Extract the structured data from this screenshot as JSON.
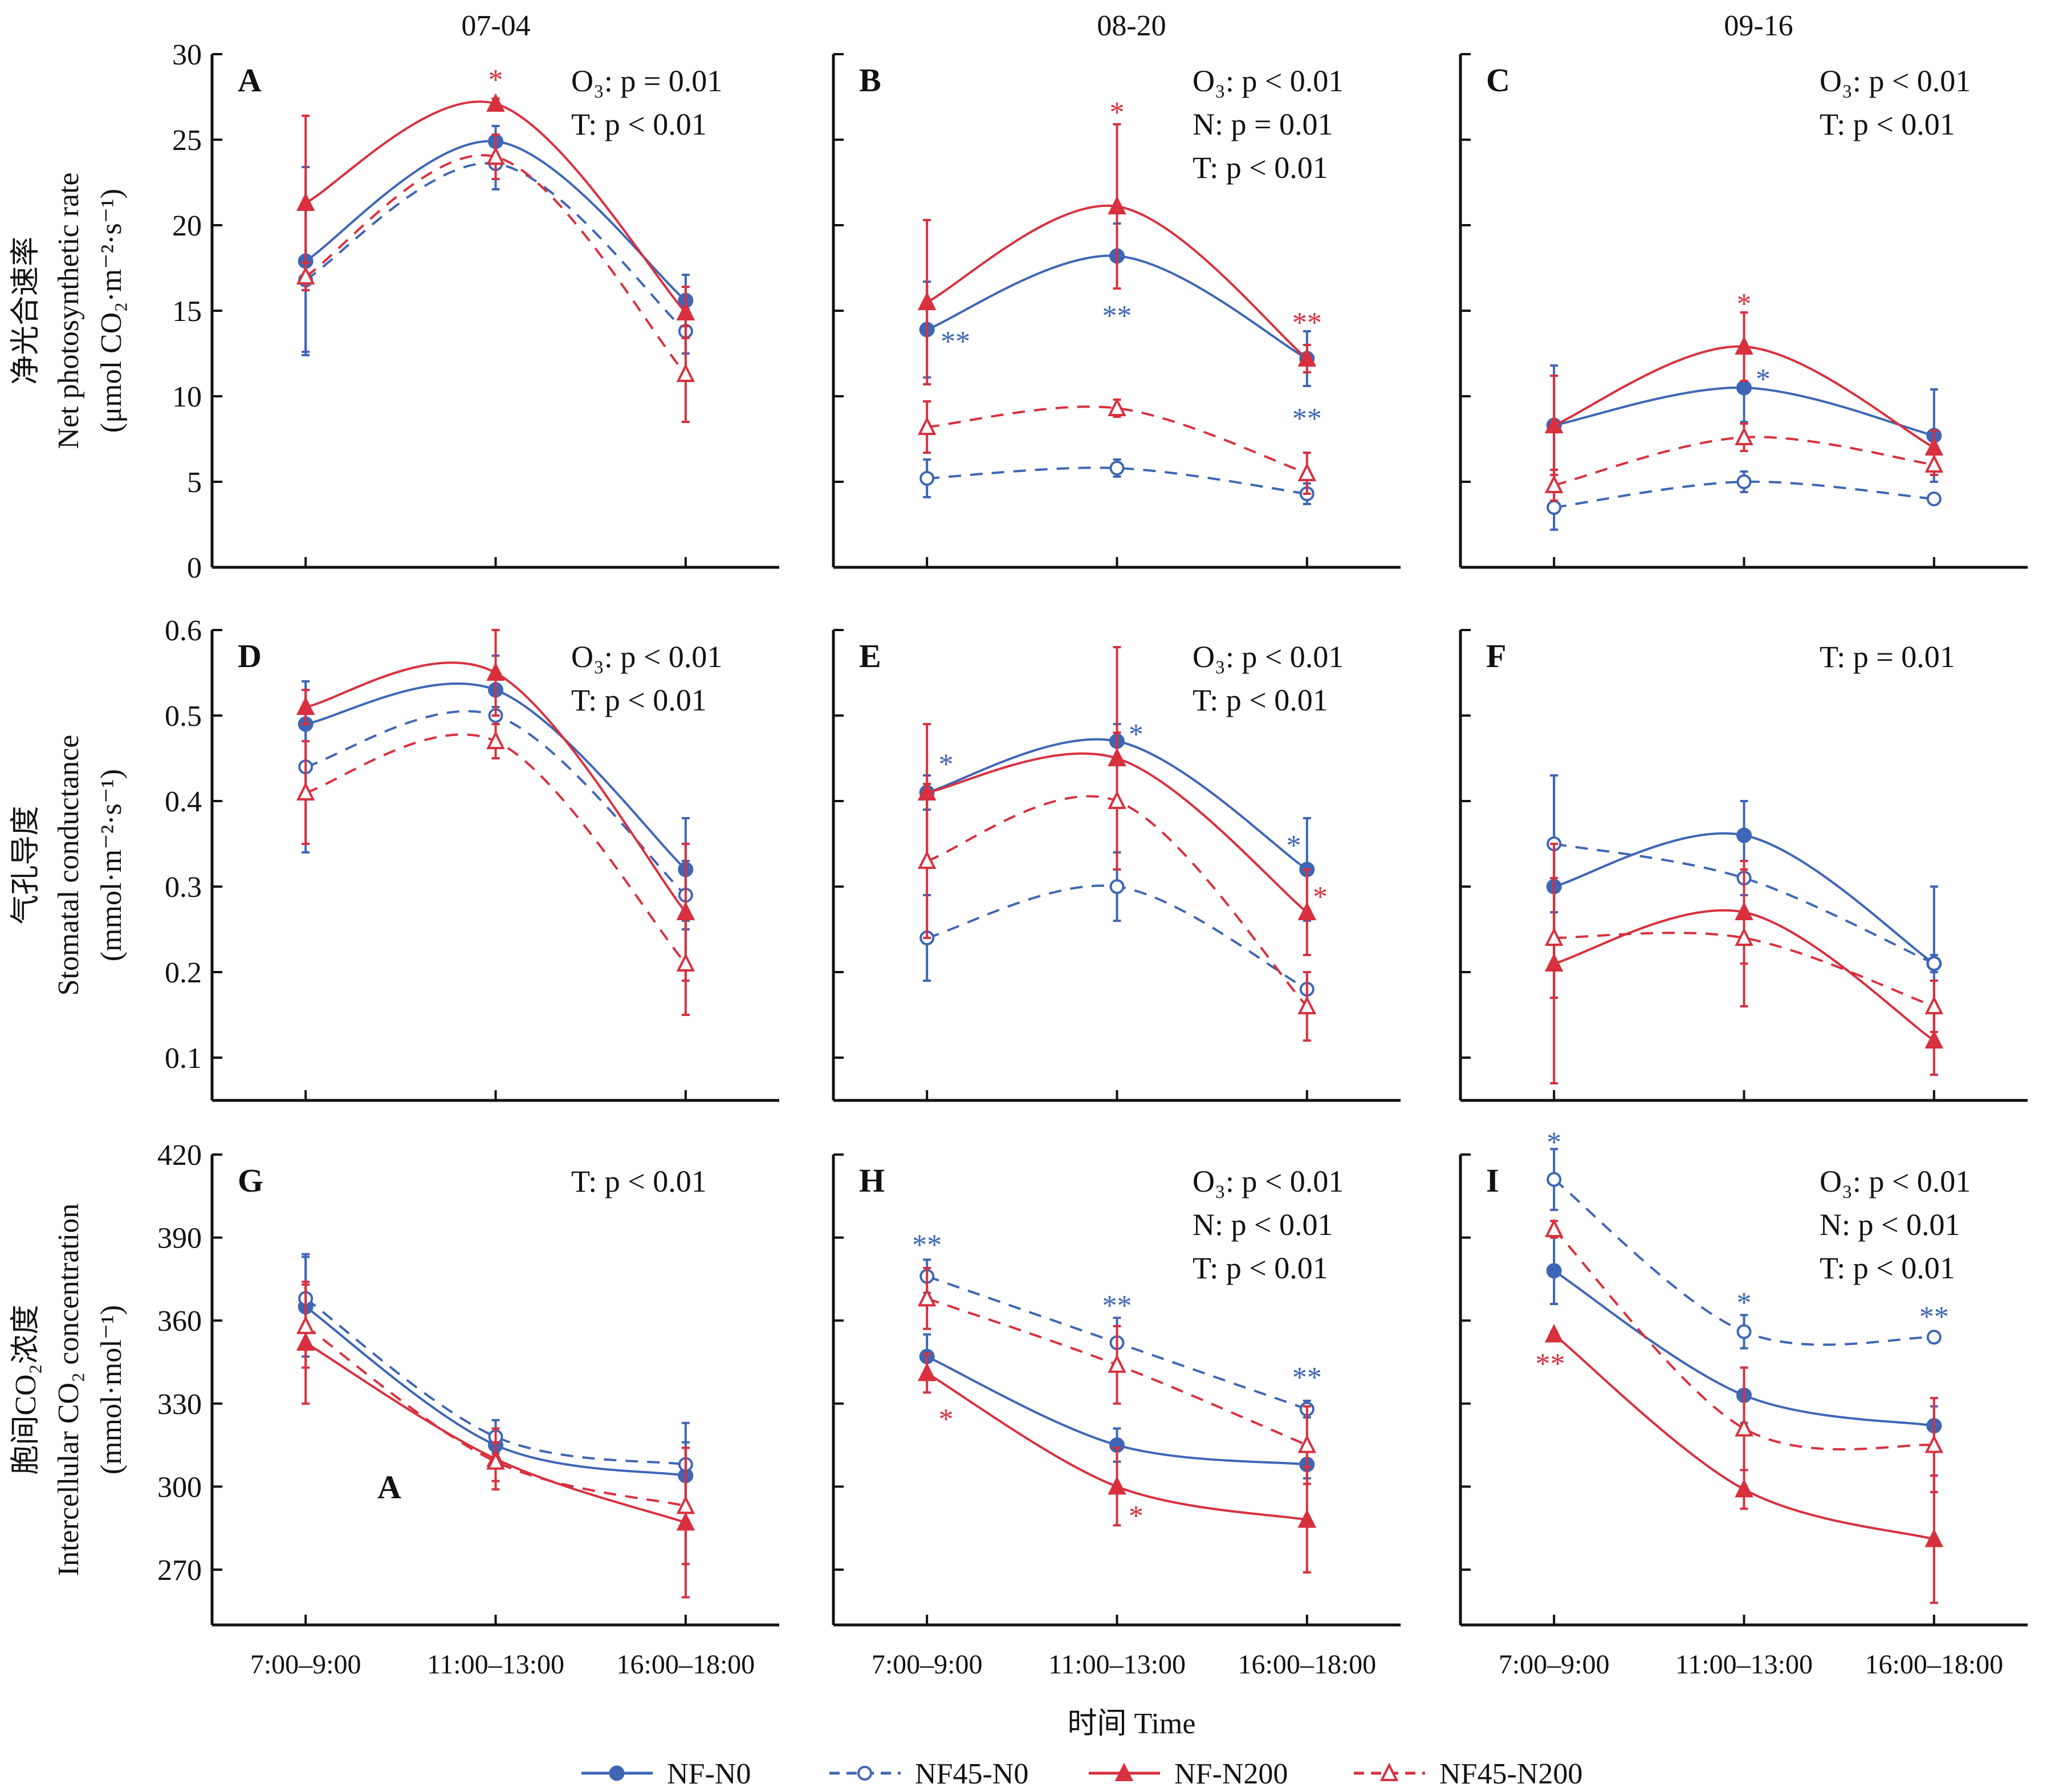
{
  "colors": {
    "blue": "#3e66b5",
    "red": "#d8303e",
    "axis": "#111111"
  },
  "legend": [
    {
      "name": "NF-N0",
      "color": "blue",
      "dashed": false,
      "marker": "filled-circle"
    },
    {
      "name": "NF45-N0",
      "color": "blue",
      "dashed": true,
      "marker": "open-circle"
    },
    {
      "name": "NF-N200",
      "color": "red",
      "dashed": false,
      "marker": "filled-triangle"
    },
    {
      "name": "NF45-N200",
      "color": "red",
      "dashed": true,
      "marker": "open-triangle"
    }
  ],
  "column_titles": [
    "07-04",
    "08-20",
    "09-16"
  ],
  "x_title": "时间 Time",
  "row_ylabels": [
    {
      "cn": "净光合速率",
      "en": "Net photosynthetic rate",
      "unit": "(μmol CO₂·m⁻²·s⁻¹)"
    },
    {
      "cn": "气孔导度",
      "en": "Stomatal conductance",
      "unit": "(mmol·m⁻²·s⁻¹)"
    },
    {
      "cn": "胞间CO₂浓度",
      "en": "Intercellular CO₂ concentration",
      "unit": "(mmol·mol⁻¹)"
    }
  ],
  "chart_data": [
    {
      "panel": "A",
      "type": "line",
      "row": 0,
      "col": 0,
      "title": "07-04",
      "categories": [
        "7:00–9:00",
        "11:00–13:00",
        "16:00–18:00"
      ],
      "ylim": [
        0,
        30
      ],
      "yticks": [
        0,
        5,
        10,
        15,
        20,
        25,
        30
      ],
      "ylabel": "净光合速率 Net photosynthetic rate (μmol CO₂·m⁻²·s⁻¹)",
      "stats": [
        "O₃: p = 0.01",
        "T: p < 0.01"
      ],
      "series": [
        {
          "name": "NF-N0",
          "values": [
            17.9,
            24.9,
            15.6
          ],
          "err": [
            5.5,
            0.9,
            1.5
          ]
        },
        {
          "name": "NF45-N0",
          "values": [
            16.8,
            23.6,
            13.8
          ],
          "err": [
            4.2,
            1.5,
            1.3
          ]
        },
        {
          "name": "NF-N200",
          "values": [
            21.3,
            27.1,
            14.9
          ],
          "err": [
            5.1,
            0.3,
            1.5
          ]
        },
        {
          "name": "NF45-N200",
          "values": [
            17.0,
            24.0,
            11.3
          ],
          "err": [
            0.8,
            1.3,
            2.8
          ]
        }
      ],
      "annotations": [
        {
          "text": "*",
          "color": "red",
          "x": 1,
          "y": 28.6
        }
      ]
    },
    {
      "panel": "B",
      "type": "line",
      "row": 0,
      "col": 1,
      "title": "08-20",
      "categories": [
        "7:00–9:00",
        "11:00–13:00",
        "16:00–18:00"
      ],
      "ylim": [
        0,
        30
      ],
      "yticks": [
        0,
        5,
        10,
        15,
        20,
        25,
        30
      ],
      "stats": [
        "O₃: p < 0.01",
        "N: p = 0.01",
        "T: p < 0.01"
      ],
      "series": [
        {
          "name": "NF-N0",
          "values": [
            13.9,
            18.2,
            12.2
          ],
          "err": [
            2.8,
            1.9,
            1.6
          ]
        },
        {
          "name": "NF45-N0",
          "values": [
            5.2,
            5.8,
            4.3
          ],
          "err": [
            1.1,
            0.5,
            0.6
          ]
        },
        {
          "name": "NF-N200",
          "values": [
            15.5,
            21.1,
            12.2
          ],
          "err": [
            4.8,
            4.8,
            0.8
          ]
        },
        {
          "name": "NF45-N200",
          "values": [
            8.2,
            9.3,
            5.5
          ],
          "err": [
            1.5,
            0.5,
            1.2
          ]
        }
      ],
      "annotations": [
        {
          "text": "**",
          "color": "blue",
          "x": 0.15,
          "y": 13.3
        },
        {
          "text": "*",
          "color": "red",
          "x": 1,
          "y": 26.7
        },
        {
          "text": "**",
          "color": "blue",
          "x": 1,
          "y": 14.8
        },
        {
          "text": "**",
          "color": "red",
          "x": 1,
          "y": 14.4,
          "x_idx": 2
        },
        {
          "text": "**",
          "color": "blue",
          "x": 2,
          "y": 8.8
        }
      ]
    },
    {
      "panel": "C",
      "type": "line",
      "row": 0,
      "col": 2,
      "title": "09-16",
      "categories": [
        "7:00–9:00",
        "11:00–13:00",
        "16:00–18:00"
      ],
      "ylim": [
        0,
        30
      ],
      "yticks": [
        0,
        5,
        10,
        15,
        20,
        25,
        30
      ],
      "stats": [
        "O₃: p < 0.01",
        "T: p < 0.01"
      ],
      "series": [
        {
          "name": "NF-N0",
          "values": [
            8.3,
            10.5,
            7.7
          ],
          "err": [
            3.5,
            2.0,
            2.7
          ]
        },
        {
          "name": "NF45-N0",
          "values": [
            3.5,
            5.0,
            4.0
          ],
          "err": [
            1.3,
            0.6,
            0.3
          ]
        },
        {
          "name": "NF-N200",
          "values": [
            8.3,
            12.9,
            7.0
          ],
          "err": [
            2.9,
            2.0,
            1.0
          ]
        },
        {
          "name": "NF45-N200",
          "values": [
            4.8,
            7.6,
            6.0
          ],
          "err": [
            0.9,
            0.8,
            0.6
          ]
        }
      ],
      "annotations": [
        {
          "text": "*",
          "color": "red",
          "x": 1,
          "y": 15.5
        },
        {
          "text": "*",
          "color": "blue",
          "x": 1.1,
          "y": 11.1
        }
      ]
    },
    {
      "panel": "D",
      "type": "line",
      "row": 1,
      "col": 0,
      "categories": [
        "7:00–9:00",
        "11:00–13:00",
        "16:00–18:00"
      ],
      "ylim": [
        0.05,
        0.6
      ],
      "yticks": [
        0.1,
        0.2,
        0.3,
        0.4,
        0.5,
        0.6
      ],
      "ylabel": "气孔导度 Stomatal conductance (mmol·m⁻²·s⁻¹)",
      "stats": [
        "O₃: p < 0.01",
        "T: p < 0.01"
      ],
      "series": [
        {
          "name": "NF-N0",
          "values": [
            0.49,
            0.53,
            0.32
          ],
          "err": [
            0.05,
            0.04,
            0.06
          ]
        },
        {
          "name": "NF45-N0",
          "values": [
            0.44,
            0.5,
            0.29
          ],
          "err": [
            0.1,
            0.01,
            0.04
          ]
        },
        {
          "name": "NF-N200",
          "values": [
            0.51,
            0.55,
            0.27
          ],
          "err": [
            0.02,
            0.05,
            0.08
          ]
        },
        {
          "name": "NF45-N200",
          "values": [
            0.41,
            0.47,
            0.21
          ],
          "err": [
            0.06,
            0.02,
            0.06
          ]
        }
      ],
      "annotations": []
    },
    {
      "panel": "E",
      "type": "line",
      "row": 1,
      "col": 1,
      "categories": [
        "7:00–9:00",
        "11:00–13:00",
        "16:00–18:00"
      ],
      "ylim": [
        0.05,
        0.6
      ],
      "yticks": [
        0.1,
        0.2,
        0.3,
        0.4,
        0.5,
        0.6
      ],
      "stats": [
        "O₃: p < 0.01",
        "T: p < 0.01"
      ],
      "series": [
        {
          "name": "NF-N0",
          "values": [
            0.41,
            0.47,
            0.32
          ],
          "err": [
            0.02,
            0.02,
            0.06
          ]
        },
        {
          "name": "NF45-N0",
          "values": [
            0.24,
            0.3,
            0.18
          ],
          "err": [
            0.05,
            0.04,
            0.02
          ]
        },
        {
          "name": "NF-N200",
          "values": [
            0.41,
            0.45,
            0.27
          ],
          "err": [
            0.08,
            0.13,
            0.05
          ]
        },
        {
          "name": "NF45-N200",
          "values": [
            0.33,
            0.4,
            0.16
          ],
          "err": [
            0.09,
            0.08,
            0.04
          ]
        }
      ],
      "annotations": [
        {
          "text": "*",
          "color": "blue",
          "x": 0.1,
          "y": 0.445
        },
        {
          "text": "*",
          "color": "blue",
          "x": 1.1,
          "y": 0.48
        },
        {
          "text": "*",
          "color": "blue",
          "x": 1.93,
          "y": 0.35
        },
        {
          "text": "*",
          "color": "red",
          "x": 2.07,
          "y": 0.29
        }
      ]
    },
    {
      "panel": "F",
      "type": "line",
      "row": 1,
      "col": 2,
      "categories": [
        "7:00–9:00",
        "11:00–13:00",
        "16:00–18:00"
      ],
      "ylim": [
        0.05,
        0.6
      ],
      "yticks": [
        0.1,
        0.2,
        0.3,
        0.4,
        0.5,
        0.6
      ],
      "stats": [
        "T: p = 0.01"
      ],
      "series": [
        {
          "name": "NF-N0",
          "values": [
            0.3,
            0.36,
            0.21
          ],
          "err": [
            0.13,
            0.04,
            0.09
          ]
        },
        {
          "name": "NF45-N0",
          "values": [
            0.35,
            0.31,
            0.21
          ],
          "err": [
            0.08,
            0.02,
            0.01
          ]
        },
        {
          "name": "NF-N200",
          "values": [
            0.21,
            0.27,
            0.12
          ],
          "err": [
            0.14,
            0.06,
            0.04
          ]
        },
        {
          "name": "NF45-N200",
          "values": [
            0.24,
            0.24,
            0.16
          ],
          "err": [
            0.07,
            0.08,
            0.03
          ]
        }
      ],
      "annotations": []
    },
    {
      "panel": "G",
      "type": "line",
      "row": 2,
      "col": 0,
      "categories": [
        "7:00–9:00",
        "11:00–13:00",
        "16:00–18:00"
      ],
      "ylim": [
        250,
        420
      ],
      "yticks": [
        270,
        300,
        330,
        360,
        390,
        420
      ],
      "ylabel": "胞间CO₂浓度 Intercellular CO₂ concentration (mmol·mol⁻¹)",
      "stats": [
        "T: p < 0.01"
      ],
      "inner_label": "A",
      "series": [
        {
          "name": "NF-N0",
          "values": [
            365,
            315,
            304
          ],
          "err": [
            18,
            6,
            12
          ]
        },
        {
          "name": "NF45-N0",
          "values": [
            368,
            318,
            308
          ],
          "err": [
            16,
            6,
            15
          ]
        },
        {
          "name": "NF-N200",
          "values": [
            352,
            310,
            287
          ],
          "err": [
            22,
            11,
            27
          ]
        },
        {
          "name": "NF45-N200",
          "values": [
            358,
            309,
            293
          ],
          "err": [
            15,
            7,
            21
          ]
        }
      ],
      "annotations": []
    },
    {
      "panel": "H",
      "type": "line",
      "row": 2,
      "col": 1,
      "categories": [
        "7:00–9:00",
        "11:00–13:00",
        "16:00–18:00"
      ],
      "ylim": [
        250,
        420
      ],
      "yticks": [
        270,
        300,
        330,
        360,
        390,
        420
      ],
      "stats": [
        "O₃: p < 0.01",
        "N: p < 0.01",
        "T: p < 0.01"
      ],
      "series": [
        {
          "name": "NF-N0",
          "values": [
            347,
            315,
            308
          ],
          "err": [
            8,
            6,
            5
          ]
        },
        {
          "name": "NF45-N0",
          "values": [
            376,
            352,
            328
          ],
          "err": [
            6,
            9,
            3
          ]
        },
        {
          "name": "NF-N200",
          "values": [
            341,
            300,
            288
          ],
          "err": [
            7,
            14,
            19
          ]
        },
        {
          "name": "NF45-N200",
          "values": [
            368,
            344,
            315
          ],
          "err": [
            11,
            14,
            14
          ]
        }
      ],
      "annotations": [
        {
          "text": "**",
          "color": "blue",
          "x": 0,
          "y": 388
        },
        {
          "text": "*",
          "color": "red",
          "x": 0.1,
          "y": 325
        },
        {
          "text": "**",
          "color": "blue",
          "x": 1,
          "y": 366
        },
        {
          "text": "*",
          "color": "red",
          "x": 1.1,
          "y": 290
        },
        {
          "text": "**",
          "color": "blue",
          "x": 2,
          "y": 340
        }
      ]
    },
    {
      "panel": "I",
      "type": "line",
      "row": 2,
      "col": 2,
      "categories": [
        "7:00–9:00",
        "11:00–13:00",
        "16:00–18:00"
      ],
      "ylim": [
        250,
        420
      ],
      "yticks": [
        270,
        300,
        330,
        360,
        390,
        420
      ],
      "stats": [
        "O₃: p < 0.01",
        "N: p < 0.01",
        "T: p < 0.01"
      ],
      "series": [
        {
          "name": "NF-N0",
          "values": [
            378,
            333,
            322
          ],
          "err": [
            12,
            10,
            7
          ]
        },
        {
          "name": "NF45-N0",
          "values": [
            411,
            356,
            354
          ],
          "err": [
            11,
            6,
            2
          ]
        },
        {
          "name": "NF-N200",
          "values": [
            355,
            299,
            281
          ],
          "err": [
            1,
            7,
            23
          ]
        },
        {
          "name": "NF45-N200",
          "values": [
            393,
            321,
            315
          ],
          "err": [
            3,
            22,
            17
          ]
        }
      ],
      "annotations": [
        {
          "text": "*",
          "color": "blue",
          "x": 0,
          "y": 425
        },
        {
          "text": "**",
          "color": "red",
          "x": -0.02,
          "y": 345
        },
        {
          "text": "*",
          "color": "blue",
          "x": 1,
          "y": 367
        },
        {
          "text": "**",
          "color": "blue",
          "x": 2,
          "y": 362
        }
      ]
    }
  ]
}
